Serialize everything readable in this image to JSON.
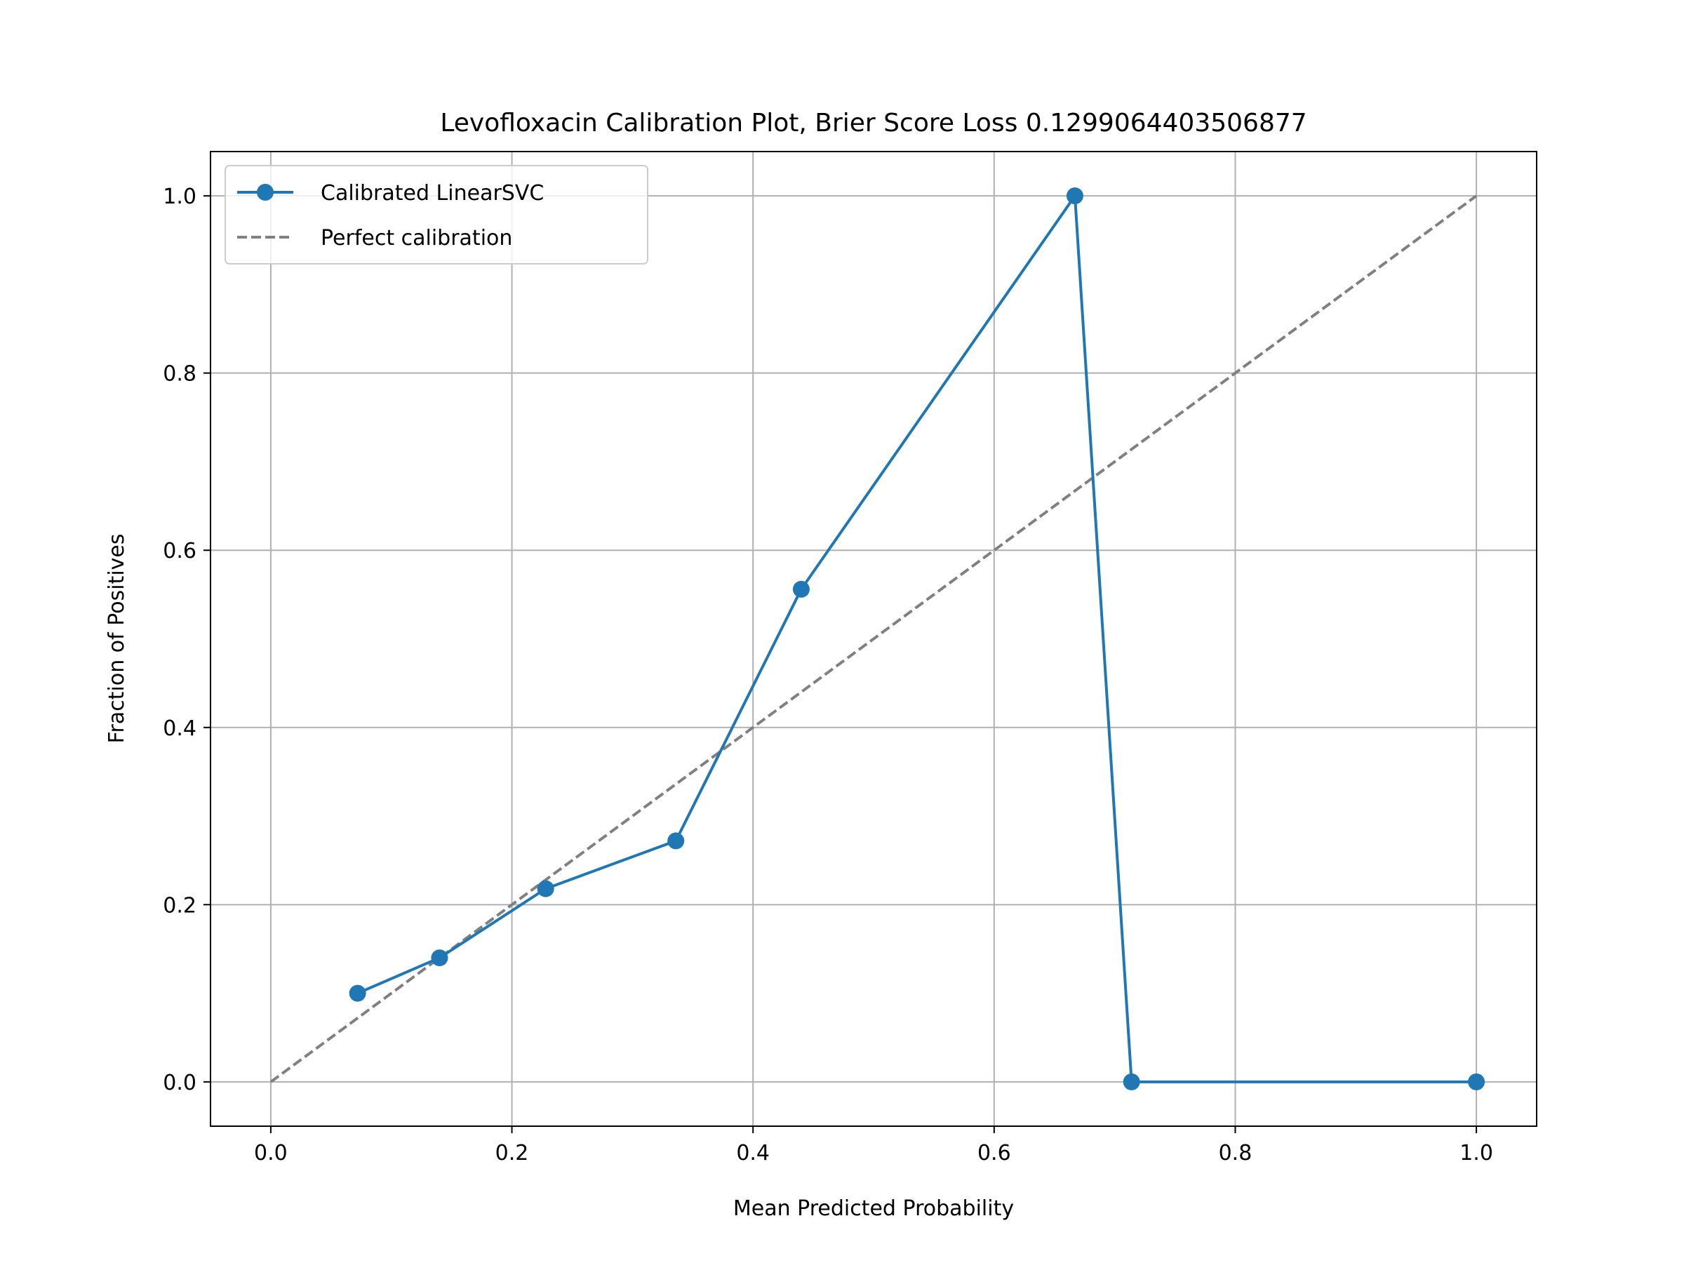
{
  "chart_data": {
    "type": "line",
    "title": "Levofloxacin Calibration Plot, Brier Score Loss 0.1299064403506877",
    "xlabel": "Mean Predicted Probability",
    "ylabel": "Fraction of Positives",
    "xlim": [
      -0.05,
      1.05
    ],
    "ylim": [
      -0.05,
      1.05
    ],
    "xticks": [
      0.0,
      0.2,
      0.4,
      0.6,
      0.8,
      1.0
    ],
    "yticks": [
      0.0,
      0.2,
      0.4,
      0.6,
      0.8,
      1.0
    ],
    "xtick_labels": [
      "0.0",
      "0.2",
      "0.4",
      "0.6",
      "0.8",
      "1.0"
    ],
    "ytick_labels": [
      "0.0",
      "0.2",
      "0.4",
      "0.6",
      "0.8",
      "1.0"
    ],
    "grid": true,
    "legend_position": "top-left",
    "series": [
      {
        "name": "Calibrated LinearSVC",
        "style": "solid-line-with-circle-markers",
        "color": "#1f77b4",
        "x": [
          0.072,
          0.14,
          0.228,
          0.336,
          0.44,
          0.667,
          0.714,
          1.0
        ],
        "y": [
          0.1,
          0.14,
          0.218,
          0.272,
          0.556,
          1.0,
          0.0,
          0.0
        ]
      },
      {
        "name": "Perfect calibration",
        "style": "dashed-line",
        "color": "#808080",
        "x": [
          0.0,
          1.0
        ],
        "y": [
          0.0,
          1.0
        ]
      }
    ]
  }
}
